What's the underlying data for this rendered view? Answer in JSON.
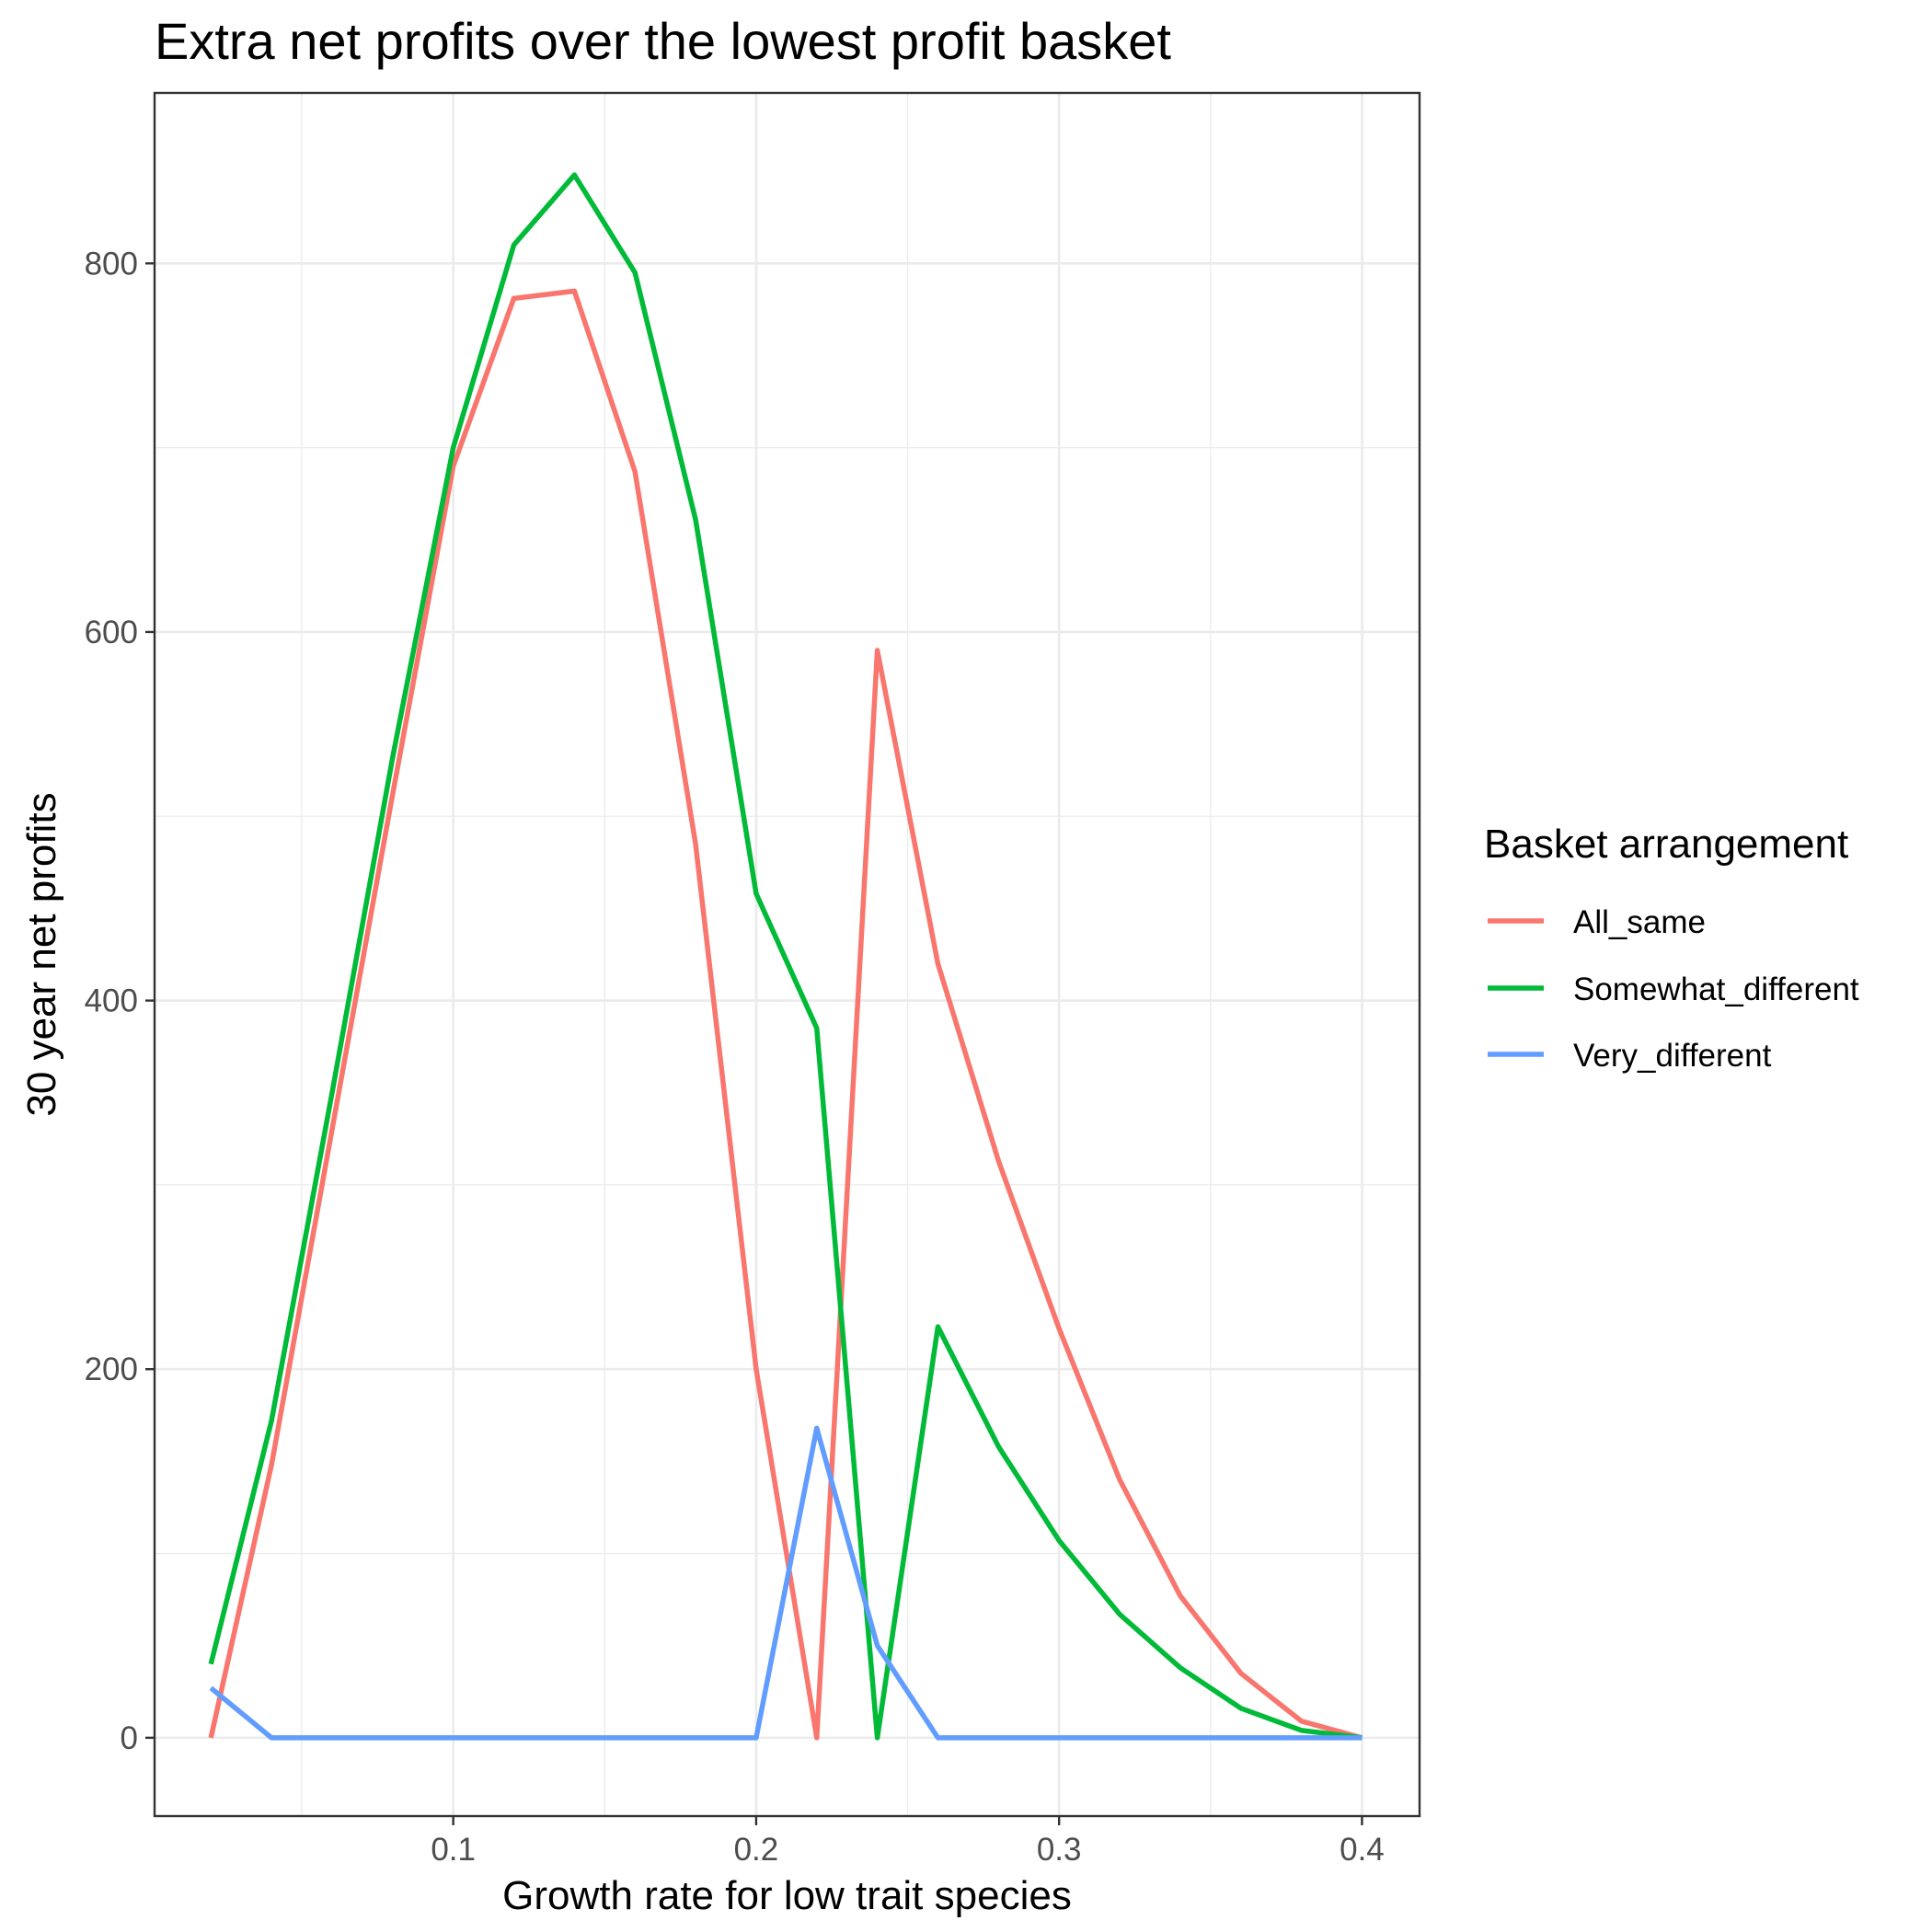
{
  "chart_data": {
    "type": "line",
    "title": "Extra net profits over the lowest profit basket",
    "xlabel": "Growth rate for low trait species",
    "ylabel": "30 year net profits",
    "xlim": [
      0.0014,
      0.419
    ],
    "ylim": [
      -42.5,
      892.5
    ],
    "x_ticks": [
      0.1,
      0.2,
      0.3,
      0.4
    ],
    "x_tick_labels": [
      "0.1",
      "0.2",
      "0.3",
      "0.4"
    ],
    "x_minor_ticks": [
      0.05,
      0.15,
      0.25,
      0.35
    ],
    "y_ticks": [
      0,
      200,
      400,
      600,
      800
    ],
    "y_tick_labels": [
      "0",
      "200",
      "400",
      "600",
      "800"
    ],
    "y_minor_ticks": [
      100,
      300,
      500,
      700
    ],
    "grid": true,
    "legend": {
      "title": "Basket arrangement",
      "position": "right"
    },
    "x": [
      0.02,
      0.04,
      0.06,
      0.08,
      0.1,
      0.12,
      0.14,
      0.16,
      0.18,
      0.2,
      0.22,
      0.24,
      0.26,
      0.28,
      0.3,
      0.32,
      0.34,
      0.36,
      0.38,
      0.4
    ],
    "series": [
      {
        "name": "All_same",
        "color": "#F8766D",
        "values": [
          0,
          148,
          330,
          512,
          690,
          781,
          785,
          687,
          485,
          200,
          0,
          590,
          420,
          313,
          222,
          140,
          77,
          35,
          9,
          0
        ]
      },
      {
        "name": "Somewhat_different",
        "color": "#00BA38",
        "values": [
          40,
          172,
          350,
          532,
          700,
          810,
          848,
          795,
          661,
          458,
          385,
          0,
          223,
          158,
          107,
          67,
          38,
          16,
          4,
          0
        ]
      },
      {
        "name": "Very_different",
        "color": "#619CFF",
        "values": [
          27,
          0,
          0,
          0,
          0,
          0,
          0,
          0,
          0,
          0,
          168,
          50,
          0,
          0,
          0,
          0,
          0,
          0,
          0,
          0
        ]
      }
    ]
  }
}
